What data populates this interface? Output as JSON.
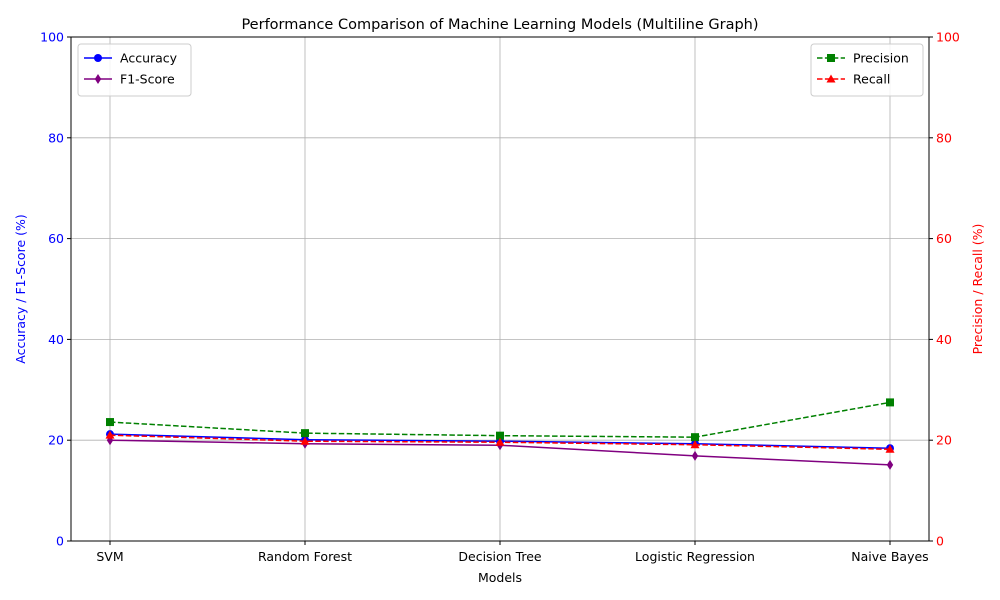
{
  "chart_data": {
    "type": "line",
    "title": "Performance Comparison of Machine Learning Models (Multiline Graph)",
    "xlabel": "Models",
    "ylabel_left": "Accuracy / F1-Score (%)",
    "ylabel_right": "Precision / Recall (%)",
    "categories": [
      "SVM",
      "Random Forest",
      "Decision Tree",
      "Logistic Regression",
      "Naive Bayes"
    ],
    "ylim_left": [
      0,
      100
    ],
    "ylim_right": [
      0,
      100
    ],
    "yticks": [
      0,
      20,
      40,
      60,
      80,
      100
    ],
    "grid": true,
    "axis_colors": {
      "left": "#0000ff",
      "right": "#ff0000"
    },
    "series": [
      {
        "name": "Accuracy",
        "axis": "left",
        "color": "#0000ff",
        "dash": "solid",
        "marker": "circle",
        "values": [
          21.2,
          20.1,
          19.8,
          19.3,
          18.4
        ]
      },
      {
        "name": "F1-Score",
        "axis": "left",
        "color": "#800080",
        "dash": "solid",
        "marker": "diamond",
        "values": [
          20.0,
          19.3,
          19.0,
          16.9,
          15.1
        ]
      },
      {
        "name": "Precision",
        "axis": "right",
        "color": "#008000",
        "dash": "dashed",
        "marker": "square",
        "values": [
          23.6,
          21.4,
          20.9,
          20.6,
          27.5
        ]
      },
      {
        "name": "Recall",
        "axis": "right",
        "color": "#ff0000",
        "dash": "dashed",
        "marker": "triangle",
        "values": [
          21.0,
          19.8,
          19.6,
          19.1,
          18.2
        ]
      }
    ],
    "legend_left": {
      "placement": "top-left",
      "entries": [
        "Accuracy",
        "F1-Score"
      ]
    },
    "legend_right": {
      "placement": "top-right",
      "entries": [
        "Precision",
        "Recall"
      ]
    }
  }
}
